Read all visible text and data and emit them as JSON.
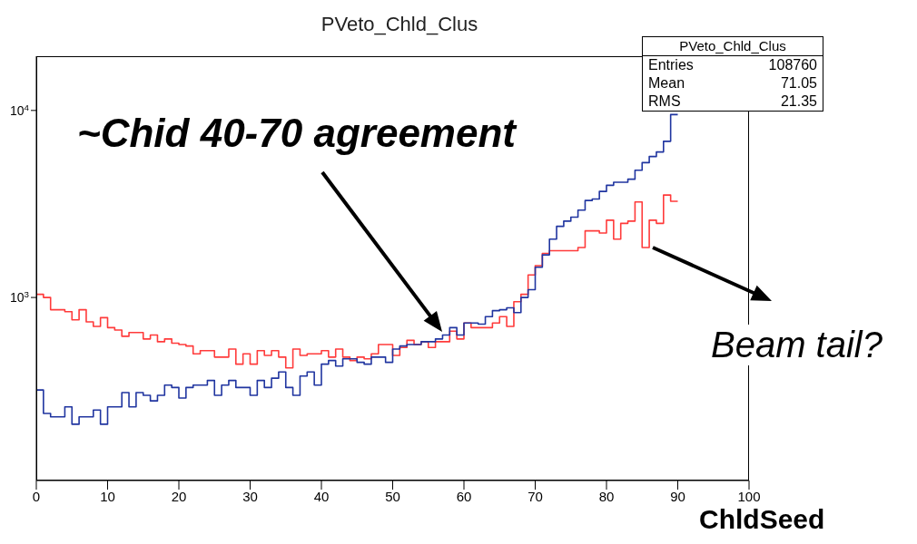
{
  "chart_data": {
    "type": "histogram",
    "title": "PVeto_Chld_Clus",
    "xlabel": "ChldSeed",
    "bins": [
      0,
      1,
      2,
      3,
      4,
      5,
      6,
      7,
      8,
      9,
      10,
      11,
      12,
      13,
      14,
      15,
      16,
      17,
      18,
      19,
      20,
      21,
      22,
      23,
      24,
      25,
      26,
      27,
      28,
      29,
      30,
      31,
      32,
      33,
      34,
      35,
      36,
      37,
      38,
      39,
      40,
      41,
      42,
      43,
      44,
      45,
      46,
      47,
      48,
      49,
      50,
      51,
      52,
      53,
      54,
      55,
      56,
      57,
      58,
      59,
      60,
      61,
      62,
      63,
      64,
      65,
      66,
      67,
      68,
      69,
      70,
      71,
      72,
      73,
      74,
      75,
      76,
      77,
      78,
      79,
      80,
      81,
      82,
      83,
      84,
      85,
      86,
      87,
      88,
      89,
      90
    ],
    "series": [
      {
        "color": "#ff3b3b",
        "values": [
          1040,
          1000,
          860,
          860,
          840,
          760,
          860,
          740,
          700,
          780,
          690,
          670,
          620,
          650,
          650,
          600,
          630,
          580,
          600,
          570,
          560,
          550,
          500,
          520,
          520,
          480,
          480,
          530,
          440,
          500,
          440,
          520,
          490,
          520,
          480,
          420,
          530,
          490,
          500,
          500,
          520,
          480,
          530,
          480,
          460,
          480,
          470,
          500,
          560,
          560,
          490,
          540,
          590,
          560,
          580,
          540,
          580,
          580,
          660,
          600,
          730,
          690,
          690,
          690,
          730,
          790,
          700,
          950,
          1040,
          1320,
          1480,
          1720,
          1780,
          1780,
          1780,
          1780,
          1850,
          2270,
          2270,
          2210,
          2590,
          2050,
          2490,
          2560,
          3240,
          1850,
          2590,
          2490,
          3530,
          3270
        ]
      },
      {
        "color": "#2035a0",
        "values": [
          320,
          240,
          230,
          230,
          260,
          210,
          230,
          230,
          250,
          210,
          260,
          260,
          310,
          260,
          310,
          300,
          280,
          300,
          340,
          330,
          290,
          330,
          340,
          340,
          360,
          300,
          340,
          360,
          330,
          330,
          300,
          360,
          330,
          370,
          400,
          330,
          300,
          380,
          400,
          340,
          440,
          460,
          430,
          470,
          470,
          450,
          440,
          480,
          480,
          450,
          530,
          550,
          560,
          560,
          580,
          580,
          600,
          630,
          690,
          630,
          730,
          730,
          720,
          790,
          850,
          860,
          880,
          830,
          1000,
          1100,
          1450,
          1690,
          2050,
          2400,
          2560,
          2690,
          2930,
          3300,
          3360,
          3690,
          3980,
          4130,
          4130,
          4290,
          4790,
          5260,
          5670,
          6000,
          6840,
          9500
        ]
      }
    ],
    "xlim": [
      0,
      100
    ],
    "xticks": [
      0,
      10,
      20,
      30,
      40,
      50,
      60,
      70,
      80,
      90,
      100
    ],
    "log": true,
    "ylim": [
      105,
      19500
    ],
    "yticks": [
      {
        "value": 1000,
        "label": "10$^{3}$"
      },
      {
        "value": 10000,
        "label": "10$^{4}$"
      }
    ],
    "marker": "none",
    "line_style": "solid",
    "annotations": [
      "PVeto_Chld_Clus",
      "Entries 108760",
      "Mean 71.05",
      "RMS 21.35",
      "~Chid 40-70 agreement",
      {
        "text": "Beam tail?",
        "x": 86.5,
        "y": 1850
      }
    ]
  }
}
